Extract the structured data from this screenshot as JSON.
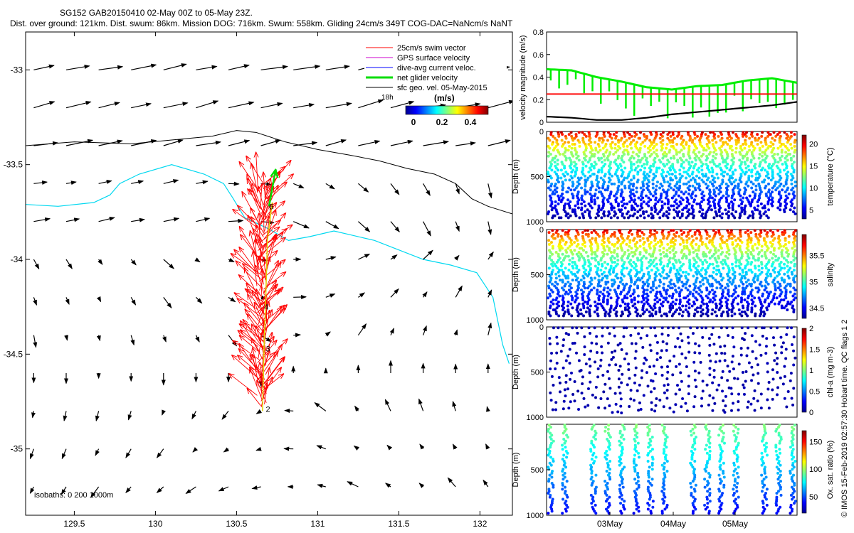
{
  "header": {
    "title": "SG152 GAB20150410 02-May 00Z to 05-May 23Z.",
    "subtitle": "Dist. over ground: 121km. Dist. swum: 86km. Mission DOG: 716km. Swum: 558km. Gliding 24cm/s 349T COG-DAC=NaNcm/s NaNT"
  },
  "map": {
    "x_ticks": [
      "129.5",
      "130",
      "130.5",
      "131",
      "131.5",
      "132"
    ],
    "y_ticks": [
      "-33",
      "-33.5",
      "-34",
      "-34.5",
      "-35"
    ],
    "xlim": [
      129.2,
      132.2
    ],
    "ylim": [
      -35.35,
      -32.8
    ],
    "isobath_text": "isobaths: 0   200  1000m",
    "legend": [
      {
        "label": "25cm/s swim vector",
        "color": "#ff0000"
      },
      {
        "label": "GPS surface velocity",
        "color": "#cc00cc"
      },
      {
        "label": "dive-avg current veloc.",
        "color": "#0000ff"
      },
      {
        "label": "net glider velocity",
        "color": "#00dd00"
      },
      {
        "label": "sfc geo. vel. 05-May-2015",
        "color": "#000000"
      }
    ],
    "legend_extra": "18h",
    "colorbar_title": "(m/s)",
    "colorbar_ticks": [
      "0",
      "0.2",
      "0.4"
    ],
    "track_labels": [
      {
        "text": "2",
        "lon": 130.68,
        "lat": -34.79
      },
      {
        "text": "3",
        "lon": 130.68,
        "lat": -34.47
      },
      {
        "text": "4",
        "lon": 130.67,
        "lat": -34.25
      },
      {
        "text": "6",
        "lon": 130.7,
        "lat": -33.72
      }
    ],
    "colors": {
      "isobath_200": "#00d8f0",
      "isobath_1000": "#000000",
      "swim": "#ff0000",
      "net": "#00dd00",
      "geo": "#000000"
    }
  },
  "chart_data": [
    {
      "type": "line",
      "title": "",
      "ylabel": "velocity magnitude (m/s)",
      "ylim": [
        0,
        0.8
      ],
      "y_ticks": [
        "0",
        "0.2",
        "0.4",
        "0.6",
        "0.8"
      ],
      "x": [
        0,
        0.1,
        0.2,
        0.3,
        0.4,
        0.5,
        0.6,
        0.7,
        0.8,
        0.9,
        1.0
      ],
      "series": [
        {
          "color": "#00ee00",
          "values": [
            0.47,
            0.46,
            0.4,
            0.36,
            0.31,
            0.29,
            0.32,
            0.33,
            0.37,
            0.39,
            0.35
          ]
        },
        {
          "color": "#ff0000",
          "values": [
            0.25,
            0.25,
            0.25,
            0.25,
            0.25,
            0.25,
            0.25,
            0.25,
            0.25,
            0.25,
            0.25
          ]
        },
        {
          "color": "#000000",
          "values": [
            0.05,
            0.04,
            0.02,
            0.02,
            0.04,
            0.07,
            0.09,
            0.11,
            0.13,
            0.15,
            0.18
          ]
        }
      ]
    },
    {
      "type": "scatter",
      "ylabel": "Depth (m)",
      "ylim": [
        0,
        1000
      ],
      "y_ticks": [
        "0",
        "500",
        "1000"
      ],
      "colorbar_label": "temperature (°C)",
      "colorbar_ticks": [
        "5",
        "10",
        "15",
        "20"
      ],
      "clim": [
        3,
        22
      ]
    },
    {
      "type": "scatter",
      "ylabel": "Depth (m)",
      "ylim": [
        0,
        1000
      ],
      "y_ticks": [
        "0",
        "500",
        "1000"
      ],
      "colorbar_label": "salinity",
      "colorbar_ticks": [
        "34.5",
        "35",
        "35.5"
      ],
      "clim": [
        34.3,
        35.9
      ]
    },
    {
      "type": "scatter",
      "ylabel": "Depth (m)",
      "ylim": [
        0,
        1000
      ],
      "y_ticks": [
        "0",
        "500",
        "1000"
      ],
      "colorbar_label": "chl-a (mg m-3)",
      "colorbar_ticks": [
        "0",
        "0.5",
        "1",
        "1.5",
        "2"
      ],
      "clim": [
        0,
        2
      ]
    },
    {
      "type": "scatter",
      "ylabel": "Depth (m)",
      "ylim": [
        0,
        1000
      ],
      "y_ticks": [
        "500",
        "1000"
      ],
      "colorbar_label": "Ox. sat. ratio (%)",
      "colorbar_ticks": [
        "50",
        "100",
        "150"
      ],
      "clim": [
        20,
        170
      ],
      "x_ticks": [
        "03May",
        "04May",
        "05May"
      ]
    }
  ],
  "side_note": "© IMOS 15-Feb-2019 02:57:30 Hobart time. QC flags 1  2"
}
